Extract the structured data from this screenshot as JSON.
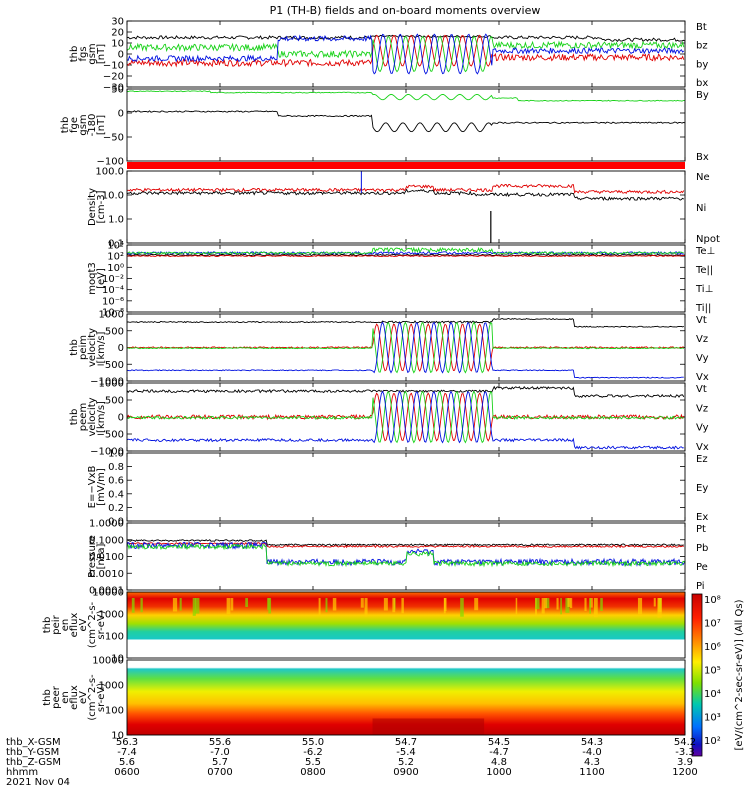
{
  "title": "P1 (TH-B) fields and on-board moments overview",
  "colors": {
    "black": "#000000",
    "red": "#e00000",
    "green": "#19d219",
    "blue": "#0010e0"
  },
  "orbit": {
    "rows": [
      {
        "label": "thb_X-GSM",
        "values": [
          "56.3",
          "55.6",
          "55.0",
          "54.7",
          "54.5",
          "54.3",
          "54.2"
        ]
      },
      {
        "label": "thb_Y-GSM",
        "values": [
          "-7.4",
          "-7.0",
          "-6.2",
          "-5.4",
          "-4.7",
          "-4.0",
          "-3.3"
        ]
      },
      {
        "label": "thb_Z-GSM",
        "values": [
          "5.6",
          "5.7",
          "5.5",
          "5.2",
          "4.8",
          "4.3",
          "3.9"
        ]
      },
      {
        "label": "hhmm",
        "values": [
          "0600",
          "0700",
          "0800",
          "0900",
          "1000",
          "1100",
          "1200"
        ]
      }
    ],
    "date": "2021 Nov 04"
  },
  "colorbar": {
    "label": "[eV/(cm^2-sec-sr-eV)] (All Qs)",
    "ticks": [
      "10⁸",
      "10⁷",
      "10⁶",
      "10⁵",
      "10⁴",
      "10³",
      "10²"
    ]
  },
  "chart_data": [
    {
      "id": "fgs",
      "type": "line",
      "ylabel": [
        "thb",
        "fgs",
        "gsm",
        "[nT]"
      ],
      "ylim": [
        -30,
        30
      ],
      "ticks": [
        "30",
        "20",
        "10",
        "0",
        "−10",
        "−20",
        "−30"
      ],
      "legend": [
        {
          "name": "Bt",
          "color": "black"
        },
        {
          "name": "bz",
          "color": "red"
        },
        {
          "name": "by",
          "color": "green"
        },
        {
          "name": "bx",
          "color": "blue"
        }
      ]
    },
    {
      "id": "fge",
      "type": "line",
      "ylabel": [
        "thb",
        "fge",
        "gsm",
        "-180",
        "[nT]"
      ],
      "ylim": [
        -130,
        30
      ],
      "ticks": [
        "50",
        "0",
        "−50",
        "−100"
      ],
      "legend": [
        {
          "name": "By",
          "color": "green"
        },
        {
          "name": "Bx",
          "color": "black"
        }
      ]
    },
    {
      "id": "density",
      "type": "line",
      "ylabel": [
        "Density",
        "[cm-3]"
      ],
      "scale": "log",
      "ylim": [
        0.01,
        100
      ],
      "ticks": [
        "100.0",
        "10.0",
        "1.0",
        "0.1"
      ],
      "legend": [
        {
          "name": "Ne",
          "color": "red"
        },
        {
          "name": "Ni",
          "color": "black"
        },
        {
          "name": "Npot",
          "color": "blue"
        }
      ]
    },
    {
      "id": "temp",
      "type": "line",
      "ylabel": [
        "moqt3",
        "[eV]"
      ],
      "scale": "log",
      "ticks": [
        "10⁴",
        "10²",
        "10⁰",
        "10⁻²",
        "10⁻⁴",
        "10⁻⁶",
        "10⁻⁸"
      ],
      "legend": [
        {
          "name": "Te⊥",
          "color": "red"
        },
        {
          "name": "Te||",
          "color": "black"
        },
        {
          "name": "Ti⊥",
          "color": "red"
        },
        {
          "name": "Ti||",
          "color": "green"
        }
      ]
    },
    {
      "id": "peim",
      "type": "line",
      "ylabel": [
        "thb",
        "peim",
        "velocity",
        "[km/s]"
      ],
      "ylim": [
        -1000,
        1000
      ],
      "ticks": [
        "1000",
        "500",
        "0",
        "−500",
        "−1000"
      ],
      "legend": [
        {
          "name": "Vt",
          "color": "black"
        },
        {
          "name": "Vz",
          "color": "red"
        },
        {
          "name": "Vy",
          "color": "green"
        },
        {
          "name": "Vx",
          "color": "blue"
        }
      ]
    },
    {
      "id": "peem",
      "type": "line",
      "ylabel": [
        "thb",
        "peem",
        "velocity",
        "[km/s]"
      ],
      "ylim": [
        -1000,
        1000
      ],
      "ticks": [
        "1000",
        "500",
        "0",
        "−500",
        "−1000"
      ],
      "legend": [
        {
          "name": "Vt",
          "color": "black"
        },
        {
          "name": "Vz",
          "color": "red"
        },
        {
          "name": "Vy",
          "color": "green"
        },
        {
          "name": "Vx",
          "color": "blue"
        }
      ]
    },
    {
      "id": "efield",
      "type": "line",
      "ylabel": [
        "E=−VxB",
        "[mV/m]"
      ],
      "ylim": [
        0,
        1
      ],
      "ticks": [
        "1.0",
        "0.8",
        "0.6",
        "0.4",
        "0.2",
        "0.0"
      ],
      "legend": [
        {
          "name": "Ez",
          "color": "red"
        },
        {
          "name": "Ey",
          "color": "green"
        },
        {
          "name": "Ex",
          "color": "blue"
        }
      ]
    },
    {
      "id": "pressure",
      "type": "line",
      "ylabel": [
        "Pressure",
        "[nPa]"
      ],
      "scale": "log",
      "ylim": [
        0.0001,
        1
      ],
      "ticks": [
        "1.0000",
        "0.1000",
        "0.0100",
        "0.0010",
        "0.0001"
      ],
      "legend": [
        {
          "name": "Pt",
          "color": "black"
        },
        {
          "name": "Pb",
          "color": "red"
        },
        {
          "name": "Pe",
          "color": "green"
        },
        {
          "name": "Pi",
          "color": "blue"
        }
      ]
    },
    {
      "id": "peir",
      "type": "heatmap",
      "ylabel": [
        "thb",
        "peir",
        "en",
        "eflux",
        "eV",
        "(cm^2-s-",
        "sr-eV)"
      ],
      "scale": "log",
      "ticks": [
        "10000",
        "1000",
        "100",
        "10"
      ]
    },
    {
      "id": "peer",
      "type": "heatmap",
      "ylabel": [
        "thb",
        "peer",
        "en",
        "eflux",
        "eV",
        "(cm^2-s-",
        "sr-eV)"
      ],
      "scale": "log",
      "ticks": [
        "10000",
        "1000",
        "100",
        "10"
      ]
    }
  ]
}
